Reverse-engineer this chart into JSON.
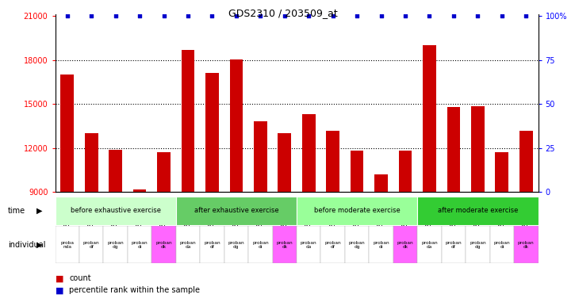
{
  "title": "GDS2310 / 203509_at",
  "samples": [
    "GSM82674",
    "GSM82670",
    "GSM82675",
    "GSM82682",
    "GSM82685",
    "GSM82680",
    "GSM82671",
    "GSM82676",
    "GSM82689",
    "GSM82686",
    "GSM82679",
    "GSM82672",
    "GSM82677",
    "GSM82683",
    "GSM82687",
    "GSM82681",
    "GSM82673",
    "GSM82678",
    "GSM82684",
    "GSM82688"
  ],
  "values": [
    17000,
    13000,
    11900,
    9200,
    11700,
    18700,
    17100,
    18050,
    13850,
    13000,
    14300,
    13200,
    11800,
    10200,
    11800,
    19000,
    14800,
    14850,
    11700,
    13200
  ],
  "ymin": 9000,
  "ymax": 21000,
  "yticks_left": [
    9000,
    12000,
    15000,
    18000,
    21000
  ],
  "right_tick_positions": [
    9000,
    12000,
    15000,
    18000,
    21000
  ],
  "right_tick_labels": [
    "0",
    "25",
    "50",
    "75",
    "100%"
  ],
  "bar_color": "#cc0000",
  "percentile_color": "#0000cc",
  "bar_width": 0.55,
  "dotted_lines": [
    12000,
    15000,
    18000
  ],
  "time_groups": [
    {
      "label": "before exhaustive exercise",
      "start": 0,
      "end": 5,
      "color": "#ccffcc"
    },
    {
      "label": "after exhaustive exercise",
      "start": 5,
      "end": 10,
      "color": "#66cc66"
    },
    {
      "label": "before moderate exercise",
      "start": 10,
      "end": 15,
      "color": "#99ff99"
    },
    {
      "label": "after moderate exercise",
      "start": 15,
      "end": 20,
      "color": "#33cc33"
    }
  ],
  "individual_labels": [
    "proba\nnda",
    "proban\ndf",
    "proban\ndg",
    "proban\ndi",
    "proban\ndk",
    "proban\nda",
    "proban\ndf",
    "proban\ndg",
    "proban\ndi",
    "proban\ndk",
    "proban\nda",
    "proban\ndf",
    "proban\ndg",
    "proban\ndi",
    "proban\ndk",
    "proban\nda",
    "proban\ndf",
    "proban\ndg",
    "proban\ndi",
    "proban\ndk"
  ],
  "individual_colors": [
    "#ffffff",
    "#ffffff",
    "#ffffff",
    "#ffffff",
    "#ff66ff",
    "#ffffff",
    "#ffffff",
    "#ffffff",
    "#ffffff",
    "#ff66ff",
    "#ffffff",
    "#ffffff",
    "#ffffff",
    "#ffffff",
    "#ff66ff",
    "#ffffff",
    "#ffffff",
    "#ffffff",
    "#ffffff",
    "#ff66ff"
  ],
  "time_label": "time",
  "individual_label": "individual",
  "legend_count_label": "count",
  "legend_percentile_label": "percentile rank within the sample",
  "bg_color": "#e8e8e8"
}
